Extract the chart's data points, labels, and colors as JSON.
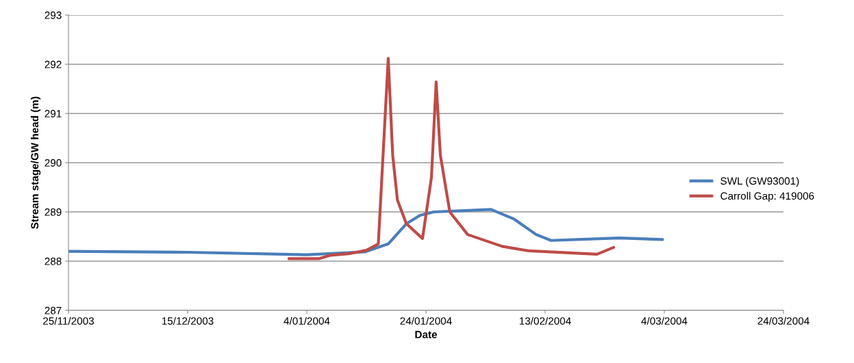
{
  "chart_data": {
    "type": "line",
    "xlabel": "Date",
    "ylabel": "Stream stage/GW head (m)",
    "xlim": [
      "2003-11-25",
      "2004-03-24"
    ],
    "xticks": [
      {
        "value": "2003-11-25",
        "label": "25/11/2003"
      },
      {
        "value": "2003-12-15",
        "label": "15/12/2003"
      },
      {
        "value": "2004-01-04",
        "label": "4/01/2004"
      },
      {
        "value": "2004-01-24",
        "label": "24/01/2004"
      },
      {
        "value": "2004-02-13",
        "label": "13/02/2004"
      },
      {
        "value": "2004-03-04",
        "label": "4/03/2004"
      },
      {
        "value": "2004-03-24",
        "label": "24/03/2004"
      }
    ],
    "ylim": [
      287,
      293
    ],
    "yticks": [
      287,
      288,
      289,
      290,
      291,
      292,
      293
    ],
    "grid": "y",
    "legend": "right",
    "marker": "none",
    "line_style": "solid",
    "series": [
      {
        "name": "SWL (GW93001)",
        "color": "#4a7ebb",
        "x": [
          "2003-11-25",
          "2003-12-15",
          "2004-01-04",
          "2004-01-13T19:00",
          "2004-01-17T16:00",
          "2004-01-20T17:00",
          "2004-01-23",
          "2004-01-25T07:00",
          "2004-02-02",
          "2004-02-03T22:00",
          "2004-02-07T17:00",
          "2004-02-11T12:00",
          "2004-02-14",
          "2004-02-25T10:00",
          "2004-03-03T17:00"
        ],
        "values": [
          288.2,
          288.18,
          288.13,
          288.19,
          288.35,
          288.76,
          288.93,
          289.0,
          289.04,
          289.05,
          288.86,
          288.54,
          288.42,
          288.47,
          288.44
        ]
      },
      {
        "name": "Carroll Gap: 419006",
        "color": "#be4b48",
        "x": [
          "2004-01-01",
          "2004-01-06",
          "2004-01-08",
          "2004-01-11",
          "2004-01-14",
          "2004-01-16",
          "2004-01-17T16:00",
          "2004-01-18T10:00",
          "2004-01-19T05:00",
          "2004-01-20T17:00",
          "2004-01-23T10:00",
          "2004-01-24T22:00",
          "2004-01-25T17:00",
          "2004-01-26T10:00",
          "2004-01-28",
          "2004-01-31",
          "2004-02-05T19:00",
          "2004-02-10T05:00",
          "2004-02-21T17:00",
          "2004-02-24T12:00"
        ],
        "values": [
          288.05,
          288.05,
          288.12,
          288.15,
          288.22,
          288.35,
          292.12,
          290.15,
          289.24,
          288.76,
          288.46,
          289.7,
          291.64,
          290.15,
          289.0,
          288.54,
          288.3,
          288.21,
          288.14,
          288.28
        ]
      }
    ]
  }
}
